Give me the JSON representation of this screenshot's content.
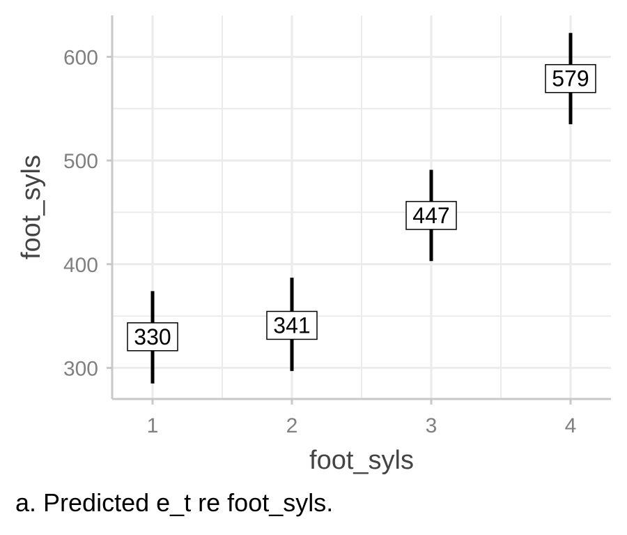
{
  "chart_data": {
    "type": "scatter",
    "x": [
      1,
      2,
      3,
      4
    ],
    "estimate": [
      330,
      341,
      447,
      579
    ],
    "lower": [
      285,
      297,
      403,
      535
    ],
    "upper": [
      374,
      387,
      491,
      623
    ],
    "data_labels": [
      "330",
      "341",
      "447",
      "579"
    ],
    "x_ticks": [
      "1",
      "2",
      "3",
      "4"
    ],
    "y_ticks": [
      300,
      400,
      500,
      600
    ],
    "xlabel": "foot_syls",
    "ylabel": "foot_syls",
    "xlim": [
      0.71,
      4.29
    ],
    "ylim": [
      270,
      640
    ],
    "grid": true,
    "colors": {
      "interval": "#000000",
      "grid": "#ebebeb",
      "axis": "#c8c8c8"
    }
  },
  "caption": "a. Predicted e_t re foot_syls."
}
